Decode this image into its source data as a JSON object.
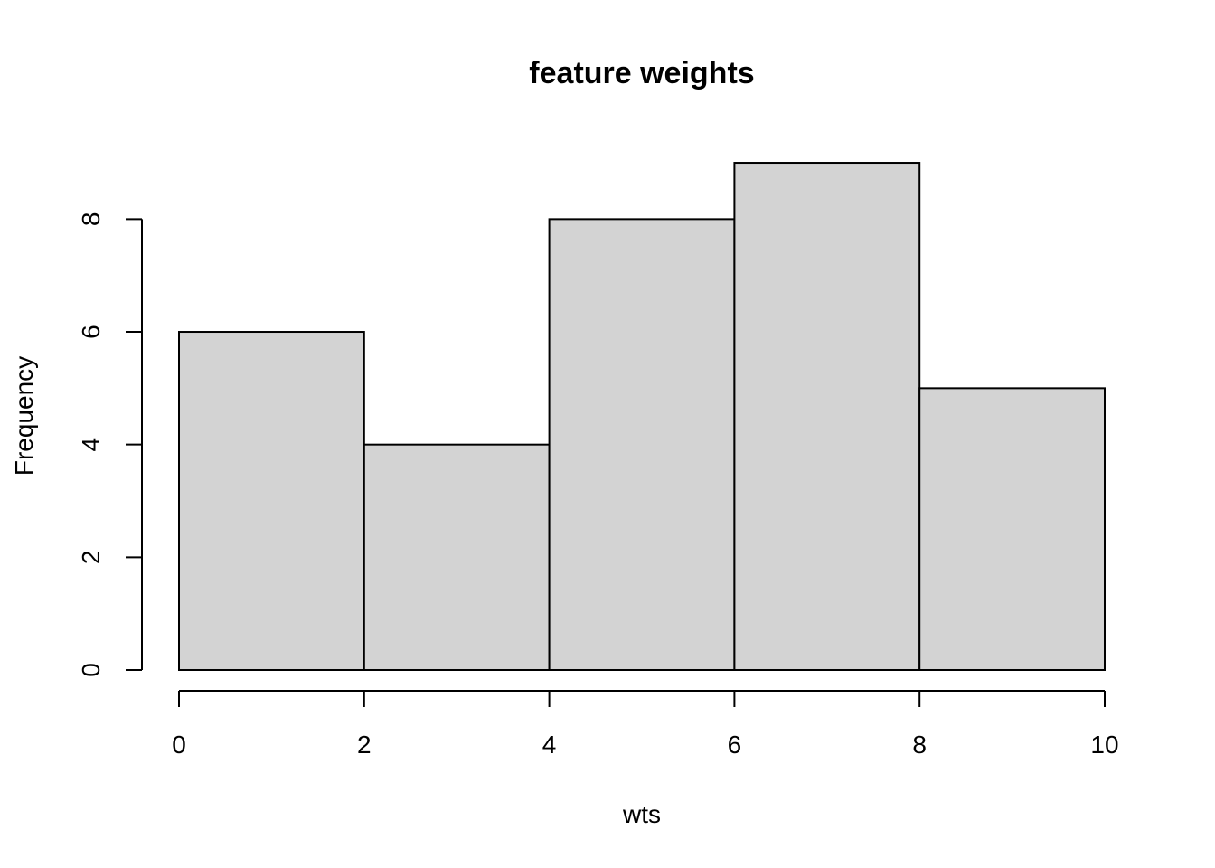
{
  "chart_data": {
    "type": "bar",
    "histogram": true,
    "title": "feature weights",
    "xlabel": "wts",
    "ylabel": "Frequency",
    "bins": [
      {
        "x0": 0,
        "x1": 2,
        "count": 6
      },
      {
        "x0": 2,
        "x1": 4,
        "count": 4
      },
      {
        "x0": 4,
        "x1": 6,
        "count": 8
      },
      {
        "x0": 6,
        "x1": 8,
        "count": 9
      },
      {
        "x0": 8,
        "x1": 10,
        "count": 5
      }
    ],
    "xlim": [
      0,
      10
    ],
    "ylim": [
      0,
      9
    ],
    "x_ticks": [
      0,
      2,
      4,
      6,
      8,
      10
    ],
    "y_ticks": [
      0,
      2,
      4,
      6,
      8
    ],
    "grid": false,
    "colors": {
      "bar_fill": "#d3d3d3",
      "bar_stroke": "#000000"
    }
  }
}
